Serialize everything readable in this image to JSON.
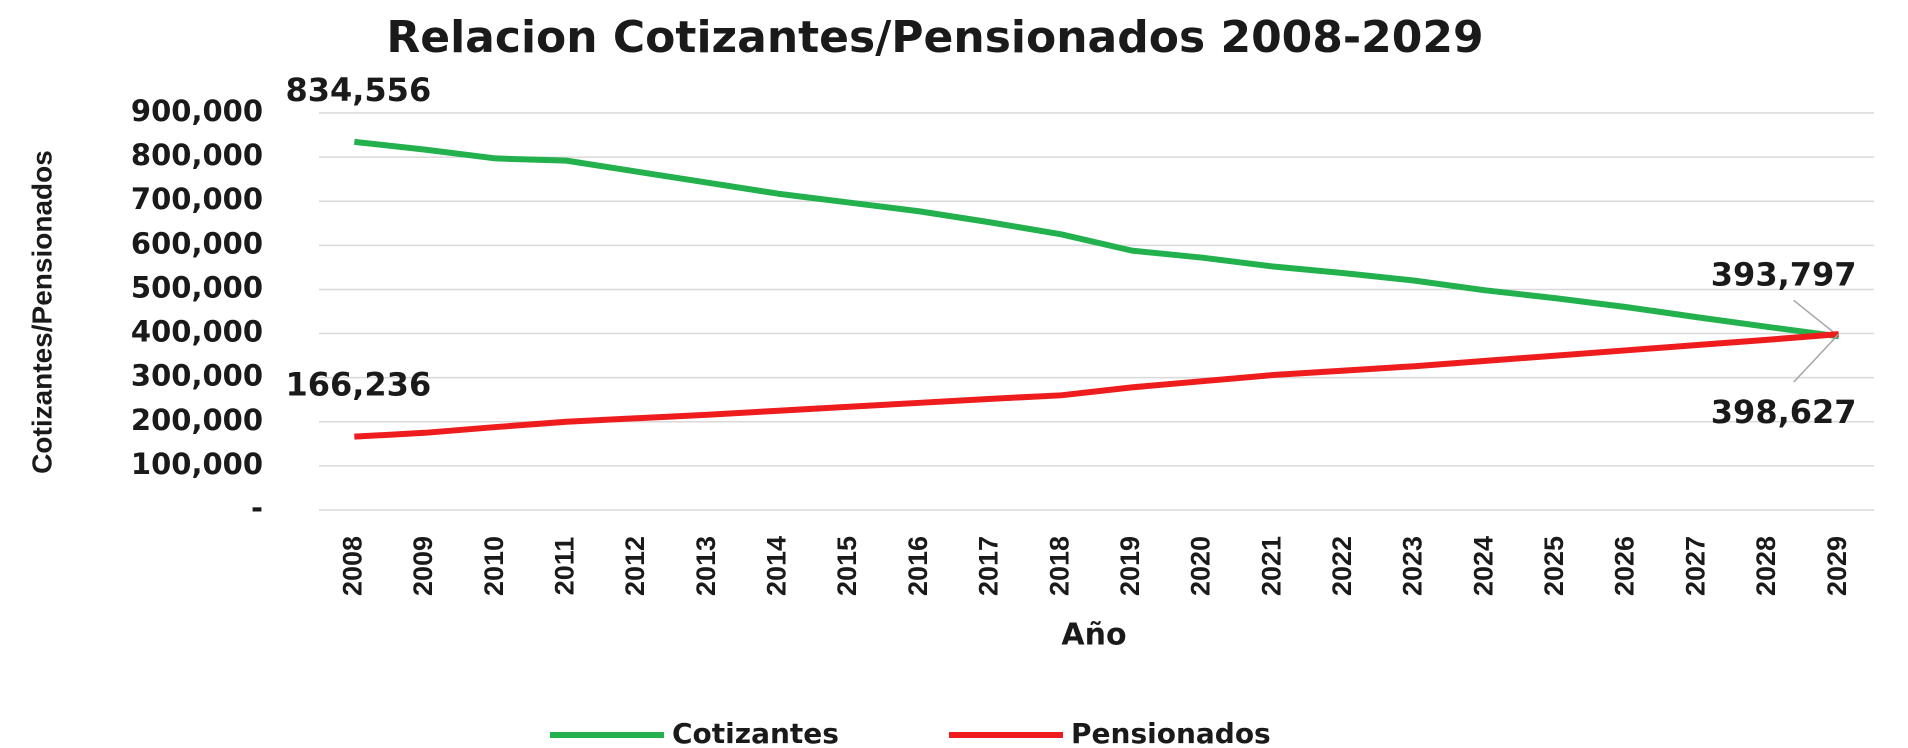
{
  "chart_data": {
    "type": "line",
    "title": "Relacion Cotizantes/Pensionados 2008-2029",
    "y_label": "Cotizantes/Pensionados",
    "x_label": "Año",
    "categories": [
      "2008",
      "2009",
      "2010",
      "2011",
      "2012",
      "2013",
      "2014",
      "2015",
      "2016",
      "2017",
      "2018",
      "2019",
      "2020",
      "2021",
      "2022",
      "2023",
      "2024",
      "2025",
      "2026",
      "2027",
      "2028",
      "2029"
    ],
    "series": [
      {
        "name": "Cotizantes",
        "color": "#22b14c",
        "values": [
          834556,
          817000,
          797000,
          792000,
          767000,
          742000,
          717000,
          697000,
          677000,
          652000,
          625000,
          588000,
          572000,
          552000,
          537000,
          520000,
          498000,
          480000,
          460000,
          437000,
          415000,
          393797
        ],
        "value_labels": [
          "834,556",
          null,
          null,
          null,
          null,
          null,
          null,
          null,
          null,
          null,
          null,
          null,
          null,
          null,
          null,
          null,
          null,
          null,
          null,
          null,
          null,
          "393,797"
        ]
      },
      {
        "name": "Pensionados",
        "color": "#ee1c1c",
        "values": [
          166236,
          175000,
          188000,
          200000,
          208000,
          216000,
          225000,
          234000,
          243000,
          252000,
          260000,
          278000,
          292000,
          306000,
          316000,
          326000,
          338000,
          350000,
          362000,
          374000,
          386000,
          398627
        ],
        "value_labels": [
          "166,236",
          null,
          null,
          null,
          null,
          null,
          null,
          null,
          null,
          null,
          null,
          null,
          null,
          null,
          null,
          null,
          null,
          null,
          null,
          null,
          null,
          "398,627"
        ]
      }
    ],
    "ylim": [
      0,
      900000
    ],
    "yticks": [
      {
        "value": 0,
        "label": "-"
      },
      {
        "value": 100000,
        "label": "100,000"
      },
      {
        "value": 200000,
        "label": "200,000"
      },
      {
        "value": 300000,
        "label": "300,000"
      },
      {
        "value": 400000,
        "label": "400,000"
      },
      {
        "value": 500000,
        "label": "500,000"
      },
      {
        "value": 600000,
        "label": "600,000"
      },
      {
        "value": 700000,
        "label": "700,000"
      },
      {
        "value": 800000,
        "label": "800,000"
      },
      {
        "value": 900000,
        "label": "900,000"
      }
    ],
    "grid": true,
    "legend": "bottom"
  }
}
